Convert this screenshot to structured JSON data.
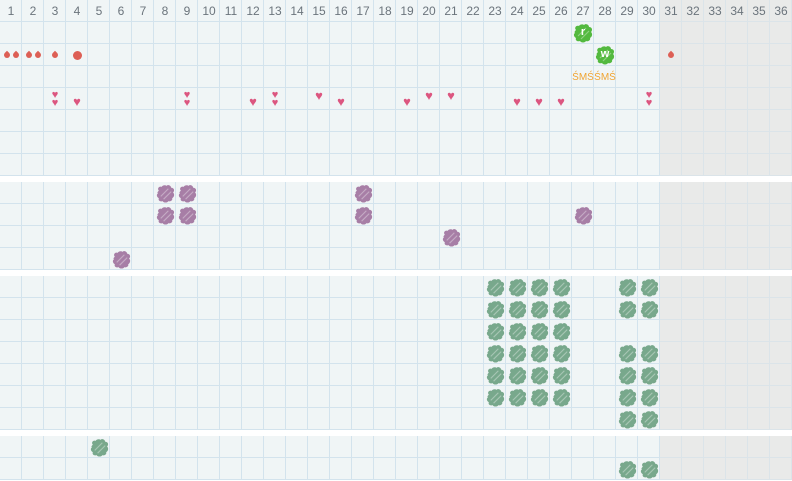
{
  "grid": {
    "columns": 36,
    "cell_size": 22,
    "inactive_from_column": 31,
    "header_labels": [
      "1",
      "2",
      "3",
      "4",
      "5",
      "6",
      "7",
      "8",
      "9",
      "10",
      "11",
      "12",
      "13",
      "14",
      "15",
      "16",
      "17",
      "18",
      "19",
      "20",
      "21",
      "22",
      "23",
      "24",
      "25",
      "26",
      "27",
      "28",
      "29",
      "30",
      "31",
      "32",
      "33",
      "34",
      "35",
      "36"
    ]
  },
  "icons": {
    "heart": "♥"
  },
  "colors": {
    "cell_bg": "#f0f5f6",
    "grid_line": "#d3e3ed",
    "inactive_bg": "#e9eae9",
    "inactive_grid_line": "#dbe4e9",
    "header_text": "#6b747c",
    "drop": "#dd5f55",
    "heart": "#dc5680",
    "splat": "#53b93f",
    "splat_text": "#ffffff",
    "sms_text": "#f0a432",
    "blob_purple": "#a77ea6",
    "blob_green": "#78a88c",
    "divider": "#ffffff"
  },
  "sections": [
    {
      "name": "daily-symbols",
      "has_header": true,
      "rows": 7,
      "marks": [
        {
          "row": 1,
          "col": 27,
          "type": "splat",
          "label": "r"
        },
        {
          "row": 1,
          "col": 28,
          "type": "splat",
          "label": "w"
        },
        {
          "row": 2,
          "col": 1,
          "type": "drops2"
        },
        {
          "row": 2,
          "col": 2,
          "type": "drops2"
        },
        {
          "row": 2,
          "col": 3,
          "type": "drop"
        },
        {
          "row": 2,
          "col": 4,
          "type": "dot"
        },
        {
          "row": 2,
          "col": 31,
          "type": "drop"
        },
        {
          "row": 3,
          "col": 27,
          "type": "sms",
          "label": "ŚMŚ"
        },
        {
          "row": 3,
          "col": 28,
          "type": "sms",
          "label": "ŚMŚ"
        },
        {
          "row": 4,
          "col": 3,
          "type": "heart2"
        },
        {
          "row": 4,
          "col": 4,
          "type": "heartLow"
        },
        {
          "row": 4,
          "col": 9,
          "type": "heart2"
        },
        {
          "row": 4,
          "col": 12,
          "type": "heartLow"
        },
        {
          "row": 4,
          "col": 13,
          "type": "heart2"
        },
        {
          "row": 4,
          "col": 15,
          "type": "heartHigh"
        },
        {
          "row": 4,
          "col": 16,
          "type": "heartLow"
        },
        {
          "row": 4,
          "col": 19,
          "type": "heartLow"
        },
        {
          "row": 4,
          "col": 20,
          "type": "heartHigh"
        },
        {
          "row": 4,
          "col": 21,
          "type": "heartHigh"
        },
        {
          "row": 4,
          "col": 24,
          "type": "heartLow"
        },
        {
          "row": 4,
          "col": 25,
          "type": "heartLow"
        },
        {
          "row": 4,
          "col": 26,
          "type": "heartLow"
        },
        {
          "row": 4,
          "col": 30,
          "type": "heart2"
        }
      ]
    },
    {
      "name": "purple-scribbles",
      "has_header": false,
      "rows": 4,
      "marks": [
        {
          "row": 1,
          "col": 8,
          "type": "blobPurple"
        },
        {
          "row": 1,
          "col": 9,
          "type": "blobPurple"
        },
        {
          "row": 1,
          "col": 17,
          "type": "blobPurple"
        },
        {
          "row": 2,
          "col": 8,
          "type": "blobPurple"
        },
        {
          "row": 2,
          "col": 9,
          "type": "blobPurple"
        },
        {
          "row": 2,
          "col": 17,
          "type": "blobPurple"
        },
        {
          "row": 2,
          "col": 27,
          "type": "blobPurple"
        },
        {
          "row": 3,
          "col": 21,
          "type": "blobPurple"
        },
        {
          "row": 4,
          "col": 6,
          "type": "blobPurple"
        }
      ]
    },
    {
      "name": "green-scribbles",
      "has_header": false,
      "rows": 7,
      "marks": [
        {
          "row": 1,
          "col": 23,
          "type": "blobGreen"
        },
        {
          "row": 1,
          "col": 24,
          "type": "blobGreen"
        },
        {
          "row": 1,
          "col": 25,
          "type": "blobGreen"
        },
        {
          "row": 1,
          "col": 26,
          "type": "blobGreen"
        },
        {
          "row": 1,
          "col": 29,
          "type": "blobGreen"
        },
        {
          "row": 1,
          "col": 30,
          "type": "blobGreen"
        },
        {
          "row": 2,
          "col": 23,
          "type": "blobGreen"
        },
        {
          "row": 2,
          "col": 24,
          "type": "blobGreen"
        },
        {
          "row": 2,
          "col": 25,
          "type": "blobGreen"
        },
        {
          "row": 2,
          "col": 26,
          "type": "blobGreen"
        },
        {
          "row": 2,
          "col": 29,
          "type": "blobGreen"
        },
        {
          "row": 2,
          "col": 30,
          "type": "blobGreen"
        },
        {
          "row": 3,
          "col": 23,
          "type": "blobGreen"
        },
        {
          "row": 3,
          "col": 24,
          "type": "blobGreen"
        },
        {
          "row": 3,
          "col": 25,
          "type": "blobGreen"
        },
        {
          "row": 3,
          "col": 26,
          "type": "blobGreen"
        },
        {
          "row": 4,
          "col": 23,
          "type": "blobGreen"
        },
        {
          "row": 4,
          "col": 24,
          "type": "blobGreen"
        },
        {
          "row": 4,
          "col": 25,
          "type": "blobGreen"
        },
        {
          "row": 4,
          "col": 26,
          "type": "blobGreen"
        },
        {
          "row": 4,
          "col": 29,
          "type": "blobGreen"
        },
        {
          "row": 4,
          "col": 30,
          "type": "blobGreen"
        },
        {
          "row": 5,
          "col": 23,
          "type": "blobGreen"
        },
        {
          "row": 5,
          "col": 24,
          "type": "blobGreen"
        },
        {
          "row": 5,
          "col": 25,
          "type": "blobGreen"
        },
        {
          "row": 5,
          "col": 26,
          "type": "blobGreen"
        },
        {
          "row": 5,
          "col": 29,
          "type": "blobGreen"
        },
        {
          "row": 5,
          "col": 30,
          "type": "blobGreen"
        },
        {
          "row": 6,
          "col": 23,
          "type": "blobGreen"
        },
        {
          "row": 6,
          "col": 24,
          "type": "blobGreen"
        },
        {
          "row": 6,
          "col": 25,
          "type": "blobGreen"
        },
        {
          "row": 6,
          "col": 26,
          "type": "blobGreen"
        },
        {
          "row": 6,
          "col": 29,
          "type": "blobGreen"
        },
        {
          "row": 6,
          "col": 30,
          "type": "blobGreen"
        },
        {
          "row": 7,
          "col": 29,
          "type": "blobGreen"
        },
        {
          "row": 7,
          "col": 30,
          "type": "blobGreen"
        }
      ]
    },
    {
      "name": "bottom-green-scribbles",
      "has_header": false,
      "rows": 2,
      "marks": [
        {
          "row": 1,
          "col": 5,
          "type": "blobGreen"
        },
        {
          "row": 2,
          "col": 29,
          "type": "blobGreen"
        },
        {
          "row": 2,
          "col": 30,
          "type": "blobGreen"
        }
      ]
    }
  ]
}
